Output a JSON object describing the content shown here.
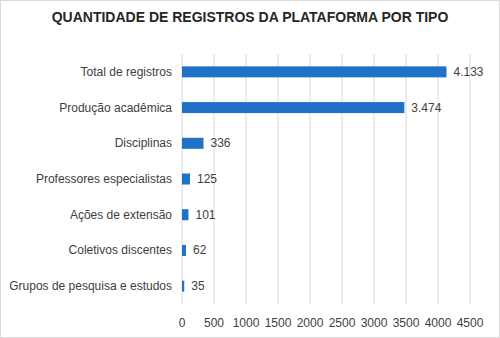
{
  "chart_data": {
    "type": "bar",
    "title": "QUANTIDADE DE REGISTROS DA PLATAFORMA POR TIPO",
    "orientation": "horizontal",
    "categories": [
      "Total de registros",
      "Produção acadêmica",
      "Disciplinas",
      "Professores especialistas",
      "Ações de extensão",
      "Coletivos discentes",
      "Grupos de pesquisa e estudos"
    ],
    "values": [
      4133,
      3474,
      336,
      125,
      101,
      62,
      35
    ],
    "value_labels": [
      "4.133",
      "3.474",
      "336",
      "125",
      "101",
      "62",
      "35"
    ],
    "color": "#1f72c8",
    "xlim": [
      0,
      4500
    ],
    "xticks": [
      0,
      500,
      1000,
      1500,
      2000,
      2500,
      3000,
      3500,
      4000,
      4500
    ],
    "grid": true,
    "data_labels": true
  }
}
